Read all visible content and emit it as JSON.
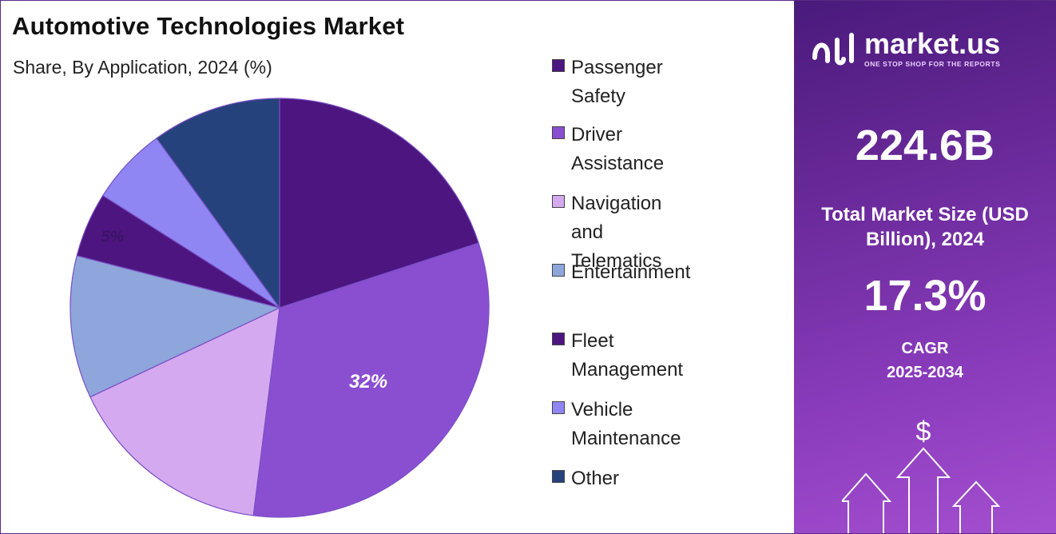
{
  "header": {
    "title": "Automotive Technologies Market",
    "subtitle": "Share, By Application, 2024 (%)"
  },
  "chart_data": {
    "type": "pie",
    "title": "Automotive Technologies Market",
    "subtitle": "Share, By Application, 2024 (%)",
    "legend_position": "right",
    "slices": [
      {
        "name": "Passenger Safety",
        "value": 20,
        "color": "#4d1580"
      },
      {
        "name": "Driver Assistance",
        "value": 32,
        "color": "#8a4fd1",
        "label": "32%"
      },
      {
        "name": "Navigation and Telematics",
        "value": 16,
        "color": "#d4a9ef"
      },
      {
        "name": "Entertainment",
        "value": 11,
        "color": "#8ea6dc"
      },
      {
        "name": "Fleet Management",
        "value": 5,
        "color": "#4d1580",
        "label": "5%"
      },
      {
        "name": "Vehicle Maintenance",
        "value": 6,
        "color": "#8f86f4"
      },
      {
        "name": "Other",
        "value": 10,
        "color": "#26427c"
      }
    ]
  },
  "legend": [
    {
      "label": "Passenger Safety",
      "color": "#4d1580"
    },
    {
      "label": "Driver Assistance",
      "color": "#8a4fd1"
    },
    {
      "label": "Navigation and Telematics",
      "color": "#d4a9ef"
    },
    {
      "label": "Entertainment",
      "color": "#8ea6dc"
    },
    {
      "label": "Fleet Management",
      "color": "#4d1580"
    },
    {
      "label": "Vehicle Maintenance",
      "color": "#8f86f4"
    },
    {
      "label": "Other",
      "color": "#26427c"
    }
  ],
  "panel": {
    "brand": "market.us",
    "tagline": "ONE STOP SHOP FOR THE REPORTS",
    "market_size_value": "224.6B",
    "market_size_label": "Total Market Size (USD Billion), 2024",
    "cagr_value": "17.3%",
    "cagr_label": "CAGR",
    "cagr_period": "2025-2034",
    "dollar_symbol": "$",
    "deco_icon": "growth-arrows-icon"
  }
}
